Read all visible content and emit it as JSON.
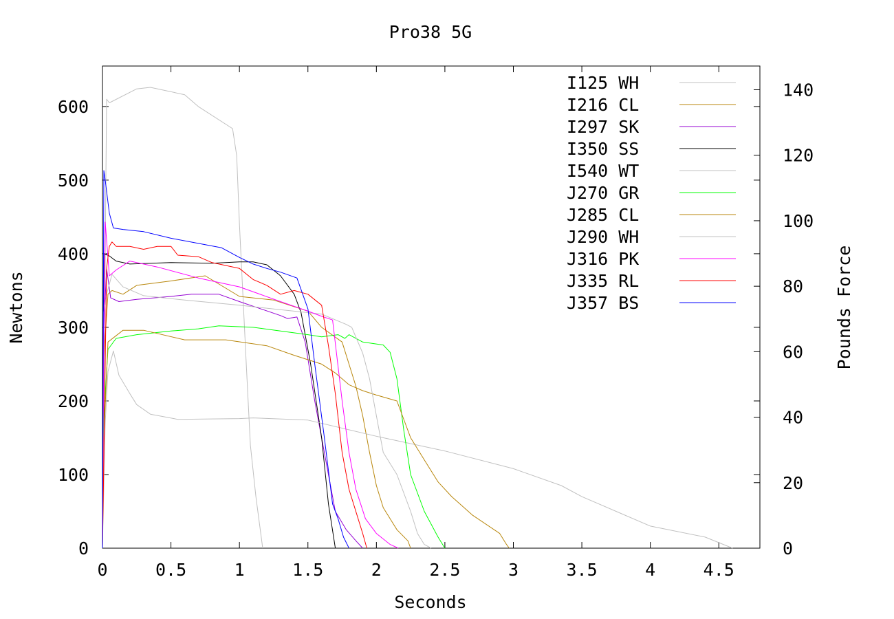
{
  "chart_data": {
    "type": "line",
    "title": "Pro38 5G",
    "xlabel": "Seconds",
    "ylabel": "Newtons",
    "y2label": "Pounds Force",
    "xlim": [
      0,
      4.8
    ],
    "ylim": [
      0,
      655
    ],
    "y2lim": [
      0,
      147.25
    ],
    "xticks": [
      "0",
      "0.5",
      "1",
      "1.5",
      "2",
      "2.5",
      "3",
      "3.5",
      "4",
      "4.5"
    ],
    "xtick_values": [
      0,
      0.5,
      1,
      1.5,
      2,
      2.5,
      3,
      3.5,
      4,
      4.5
    ],
    "yticks": [
      "0",
      "100",
      "200",
      "300",
      "400",
      "500",
      "600"
    ],
    "ytick_values": [
      0,
      100,
      200,
      300,
      400,
      500,
      600
    ],
    "y2ticks": [
      "0",
      "20",
      "40",
      "60",
      "80",
      "100",
      "120",
      "140"
    ],
    "y2tick_values": [
      0,
      20,
      40,
      60,
      80,
      100,
      120,
      140
    ],
    "grid": false,
    "legend_position": "top-right",
    "series": [
      {
        "name": "I125 WH",
        "color": "#c0c0c0",
        "points": [
          [
            0,
            0
          ],
          [
            0.01,
            180
          ],
          [
            0.03,
            610
          ],
          [
            0.05,
            605
          ],
          [
            0.25,
            624
          ],
          [
            0.35,
            626
          ],
          [
            0.6,
            616
          ],
          [
            0.7,
            600
          ],
          [
            0.95,
            570
          ],
          [
            0.98,
            533
          ],
          [
            1.0,
            440
          ],
          [
            1.05,
            250
          ],
          [
            1.08,
            140
          ],
          [
            1.12,
            70
          ],
          [
            1.17,
            0
          ]
        ]
      },
      {
        "name": "I216 CL",
        "color": "#b8860b",
        "points": [
          [
            0,
            0
          ],
          [
            0.01,
            260
          ],
          [
            0.04,
            345
          ],
          [
            0.07,
            350
          ],
          [
            0.15,
            345
          ],
          [
            0.25,
            357
          ],
          [
            0.5,
            363
          ],
          [
            0.75,
            370
          ],
          [
            1.0,
            342
          ],
          [
            1.25,
            337
          ],
          [
            1.5,
            322
          ],
          [
            1.6,
            300
          ],
          [
            1.75,
            280
          ],
          [
            1.85,
            220
          ],
          [
            1.9,
            180
          ],
          [
            1.95,
            130
          ],
          [
            2.0,
            85
          ],
          [
            2.05,
            55
          ],
          [
            2.15,
            25
          ],
          [
            2.23,
            10
          ],
          [
            2.25,
            0
          ]
        ]
      },
      {
        "name": "I297 SK",
        "color": "#9400d3",
        "points": [
          [
            0,
            0
          ],
          [
            0.01,
            300
          ],
          [
            0.03,
            380
          ],
          [
            0.06,
            340
          ],
          [
            0.12,
            335
          ],
          [
            0.25,
            338
          ],
          [
            0.5,
            342
          ],
          [
            0.65,
            345
          ],
          [
            0.85,
            345
          ],
          [
            1.0,
            335
          ],
          [
            1.3,
            316
          ],
          [
            1.35,
            312
          ],
          [
            1.42,
            314
          ],
          [
            1.48,
            280
          ],
          [
            1.55,
            200
          ],
          [
            1.65,
            100
          ],
          [
            1.7,
            50
          ],
          [
            1.78,
            25
          ],
          [
            1.85,
            10
          ],
          [
            1.9,
            0
          ]
        ]
      },
      {
        "name": "I350 SS",
        "color": "#000000",
        "points": [
          [
            0,
            0
          ],
          [
            0.01,
            400
          ],
          [
            0.05,
            397
          ],
          [
            0.1,
            390
          ],
          [
            0.2,
            386
          ],
          [
            0.5,
            388
          ],
          [
            0.8,
            387
          ],
          [
            1.0,
            389
          ],
          [
            1.1,
            389
          ],
          [
            1.2,
            385
          ],
          [
            1.3,
            370
          ],
          [
            1.4,
            345
          ],
          [
            1.45,
            320
          ],
          [
            1.52,
            250
          ],
          [
            1.6,
            150
          ],
          [
            1.65,
            60
          ],
          [
            1.7,
            0
          ]
        ]
      },
      {
        "name": "I540 WT",
        "color": "#c0c0c0",
        "points": [
          [
            0,
            0
          ],
          [
            0.02,
            170
          ],
          [
            0.04,
            240
          ],
          [
            0.08,
            268
          ],
          [
            0.12,
            235
          ],
          [
            0.2,
            210
          ],
          [
            0.25,
            195
          ],
          [
            0.35,
            182
          ],
          [
            0.55,
            175
          ],
          [
            1.0,
            176
          ],
          [
            1.1,
            177
          ],
          [
            1.5,
            174
          ],
          [
            2.0,
            152
          ],
          [
            2.5,
            132
          ],
          [
            3.0,
            108
          ],
          [
            3.35,
            85
          ],
          [
            3.5,
            70
          ],
          [
            3.75,
            50
          ],
          [
            4.0,
            30
          ],
          [
            4.4,
            15
          ],
          [
            4.6,
            0
          ]
        ]
      },
      {
        "name": "J270 GR",
        "color": "#00ff00",
        "points": [
          [
            0,
            0
          ],
          [
            0.01,
            180
          ],
          [
            0.04,
            270
          ],
          [
            0.1,
            285
          ],
          [
            0.25,
            290
          ],
          [
            0.5,
            295
          ],
          [
            0.7,
            298
          ],
          [
            0.85,
            302
          ],
          [
            1.1,
            300
          ],
          [
            1.3,
            295
          ],
          [
            1.5,
            290
          ],
          [
            1.6,
            287
          ],
          [
            1.72,
            290
          ],
          [
            1.77,
            285
          ],
          [
            1.8,
            290
          ],
          [
            1.9,
            280
          ],
          [
            2.05,
            276
          ],
          [
            2.1,
            266
          ],
          [
            2.15,
            230
          ],
          [
            2.2,
            160
          ],
          [
            2.25,
            100
          ],
          [
            2.35,
            50
          ],
          [
            2.45,
            15
          ],
          [
            2.5,
            0
          ]
        ]
      },
      {
        "name": "J285 CL",
        "color": "#b8860b",
        "points": [
          [
            0,
            0
          ],
          [
            0.01,
            150
          ],
          [
            0.04,
            280
          ],
          [
            0.15,
            296
          ],
          [
            0.3,
            296
          ],
          [
            0.6,
            283
          ],
          [
            0.9,
            283
          ],
          [
            1.2,
            275
          ],
          [
            1.4,
            262
          ],
          [
            1.6,
            250
          ],
          [
            1.7,
            238
          ],
          [
            1.8,
            222
          ],
          [
            1.9,
            214
          ],
          [
            2.0,
            208
          ],
          [
            2.15,
            200
          ],
          [
            2.25,
            150
          ],
          [
            2.35,
            120
          ],
          [
            2.45,
            90
          ],
          [
            2.55,
            70
          ],
          [
            2.7,
            45
          ],
          [
            2.9,
            20
          ],
          [
            2.95,
            5
          ],
          [
            2.97,
            0
          ]
        ]
      },
      {
        "name": "J290 WH",
        "color": "#c0c0c0",
        "points": [
          [
            0,
            0
          ],
          [
            0.01,
            320
          ],
          [
            0.03,
            345
          ],
          [
            0.07,
            372
          ],
          [
            0.15,
            355
          ],
          [
            0.3,
            343
          ],
          [
            0.6,
            337
          ],
          [
            1.0,
            330
          ],
          [
            1.25,
            325
          ],
          [
            1.5,
            320
          ],
          [
            1.6,
            318
          ],
          [
            1.78,
            304
          ],
          [
            1.82,
            300
          ],
          [
            1.9,
            265
          ],
          [
            1.95,
            230
          ],
          [
            2.0,
            180
          ],
          [
            2.05,
            130
          ],
          [
            2.15,
            100
          ],
          [
            2.25,
            50
          ],
          [
            2.3,
            20
          ],
          [
            2.35,
            5
          ],
          [
            2.4,
            0
          ]
        ]
      },
      {
        "name": "J316 PK",
        "color": "#ff00ff",
        "points": [
          [
            0,
            0
          ],
          [
            0.01,
            300
          ],
          [
            0.02,
            443
          ],
          [
            0.05,
            370
          ],
          [
            0.1,
            378
          ],
          [
            0.2,
            390
          ],
          [
            0.4,
            382
          ],
          [
            0.7,
            367
          ],
          [
            1.0,
            355
          ],
          [
            1.3,
            335
          ],
          [
            1.5,
            322
          ],
          [
            1.6,
            315
          ],
          [
            1.68,
            310
          ],
          [
            1.75,
            200
          ],
          [
            1.8,
            130
          ],
          [
            1.85,
            80
          ],
          [
            1.92,
            40
          ],
          [
            2.0,
            20
          ],
          [
            2.1,
            5
          ],
          [
            2.16,
            0
          ]
        ]
      },
      {
        "name": "J335 RL",
        "color": "#ff0000",
        "points": [
          [
            0,
            0
          ],
          [
            0.01,
            120
          ],
          [
            0.03,
            380
          ],
          [
            0.05,
            410
          ],
          [
            0.07,
            416
          ],
          [
            0.1,
            410
          ],
          [
            0.2,
            410
          ],
          [
            0.3,
            406
          ],
          [
            0.4,
            410
          ],
          [
            0.5,
            410
          ],
          [
            0.55,
            398
          ],
          [
            0.7,
            396
          ],
          [
            0.8,
            388
          ],
          [
            1.0,
            380
          ],
          [
            1.1,
            365
          ],
          [
            1.2,
            357
          ],
          [
            1.3,
            345
          ],
          [
            1.4,
            350
          ],
          [
            1.5,
            345
          ],
          [
            1.6,
            330
          ],
          [
            1.65,
            275
          ],
          [
            1.7,
            210
          ],
          [
            1.75,
            130
          ],
          [
            1.8,
            80
          ],
          [
            1.9,
            20
          ],
          [
            1.93,
            0
          ]
        ]
      },
      {
        "name": "J357 BS",
        "color": "#0000ff",
        "points": [
          [
            0,
            0
          ],
          [
            0.01,
            513
          ],
          [
            0.02,
            500
          ],
          [
            0.05,
            455
          ],
          [
            0.08,
            435
          ],
          [
            0.15,
            433
          ],
          [
            0.3,
            430
          ],
          [
            0.5,
            421
          ],
          [
            0.87,
            408
          ],
          [
            1.0,
            395
          ],
          [
            1.1,
            386
          ],
          [
            1.2,
            380
          ],
          [
            1.3,
            375
          ],
          [
            1.42,
            367
          ],
          [
            1.5,
            325
          ],
          [
            1.55,
            250
          ],
          [
            1.62,
            150
          ],
          [
            1.68,
            60
          ],
          [
            1.72,
            40
          ],
          [
            1.76,
            15
          ],
          [
            1.8,
            0
          ]
        ]
      }
    ]
  }
}
